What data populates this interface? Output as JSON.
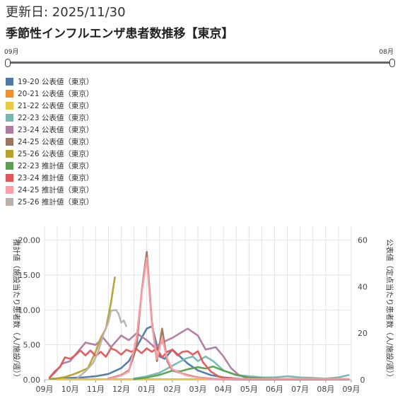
{
  "header": {
    "updated_label": "更新日: 2025/11/30",
    "title": "季節性インフルエンザ患者数推移【東京】"
  },
  "range": {
    "start": "09月",
    "end": "08月"
  },
  "chart_data": {
    "type": "line",
    "title": "季節性インフルエンザ患者数推移【東京】",
    "x_ticks": [
      "09月",
      "10月",
      "11月",
      "12月",
      "01月",
      "02月",
      "03月",
      "04月",
      "05月",
      "06月",
      "07月",
      "08月",
      "09月"
    ],
    "y_left": {
      "label": "推計値（施設当たり患者数（人/施設/週））",
      "ticks": [
        "0.00",
        "5.00",
        "10.00",
        "15.00",
        "20.00"
      ],
      "range": [
        0,
        22
      ]
    },
    "y_right": {
      "label": "公表値（定点当たり患者数（人/施設/週））",
      "ticks": [
        "0",
        "20",
        "40",
        "60"
      ],
      "range": [
        0,
        66
      ]
    },
    "grid": true,
    "legend_position": "top-left",
    "series": [
      {
        "name": "19-20 公表値（東京）",
        "color": "#4e79a7",
        "axis": "right",
        "points": [
          [
            0.2,
            0.4
          ],
          [
            0.6,
            0.5
          ],
          [
            1.0,
            0.8
          ],
          [
            1.5,
            1.0
          ],
          [
            2.0,
            1.5
          ],
          [
            2.5,
            2.5
          ],
          [
            3.0,
            5
          ],
          [
            3.3,
            8
          ],
          [
            3.5,
            12
          ],
          [
            3.8,
            18
          ],
          [
            4.0,
            22
          ],
          [
            4.2,
            23
          ],
          [
            4.3,
            19
          ],
          [
            4.5,
            10
          ],
          [
            4.7,
            9
          ],
          [
            5.0,
            13
          ],
          [
            5.3,
            10
          ],
          [
            5.6,
            7
          ],
          [
            6.0,
            4
          ],
          [
            6.5,
            2
          ],
          [
            7.0,
            1
          ],
          [
            7.5,
            0.5
          ],
          [
            8.0,
            0.2
          ],
          [
            9.0,
            0.1
          ],
          [
            10.0,
            0.1
          ],
          [
            11.0,
            0.1
          ],
          [
            11.9,
            0.2
          ]
        ]
      },
      {
        "name": "20-21 公表値（東京）",
        "color": "#f28e2b",
        "axis": "right",
        "points": [
          [
            0.5,
            0.2
          ],
          [
            2,
            0.2
          ],
          [
            4,
            0.2
          ],
          [
            6,
            0.2
          ],
          [
            8,
            0.2
          ],
          [
            10,
            0.2
          ],
          [
            11.9,
            0.2
          ]
        ]
      },
      {
        "name": "21-22 公表値（東京）",
        "color": "#edc948",
        "axis": "right",
        "points": [
          [
            0.5,
            0.1
          ],
          [
            2,
            0.1
          ],
          [
            4,
            0.1
          ],
          [
            6,
            0.1
          ],
          [
            8,
            0.1
          ],
          [
            10,
            0.1
          ],
          [
            11.9,
            0.1
          ]
        ]
      },
      {
        "name": "22-23 公表値（東京）",
        "color": "#76b7b2",
        "axis": "right",
        "points": [
          [
            3.5,
            0.5
          ],
          [
            4.0,
            1.5
          ],
          [
            4.5,
            3
          ],
          [
            5.0,
            6
          ],
          [
            5.5,
            9
          ],
          [
            5.8,
            10
          ],
          [
            6.0,
            8
          ],
          [
            6.3,
            10
          ],
          [
            6.6,
            8
          ],
          [
            7.0,
            4
          ],
          [
            7.5,
            2
          ],
          [
            8.0,
            1.5
          ],
          [
            8.5,
            1
          ],
          [
            9.0,
            1
          ],
          [
            9.5,
            1.5
          ],
          [
            10.0,
            1
          ],
          [
            10.5,
            0.8
          ],
          [
            11.0,
            0.5
          ],
          [
            11.5,
            1
          ],
          [
            11.9,
            2
          ]
        ]
      },
      {
        "name": "23-24 公表値（東京）",
        "color": "#b07aa1",
        "axis": "right",
        "points": [
          [
            0.2,
            1
          ],
          [
            0.4,
            3
          ],
          [
            0.7,
            7
          ],
          [
            1.0,
            8
          ],
          [
            1.3,
            12
          ],
          [
            1.6,
            16
          ],
          [
            2.0,
            15
          ],
          [
            2.3,
            18
          ],
          [
            2.6,
            14
          ],
          [
            3.0,
            19
          ],
          [
            3.3,
            17
          ],
          [
            3.6,
            20
          ],
          [
            4.0,
            17
          ],
          [
            4.3,
            14
          ],
          [
            4.6,
            16
          ],
          [
            5.0,
            18
          ],
          [
            5.3,
            20
          ],
          [
            5.6,
            22
          ],
          [
            6.0,
            19
          ],
          [
            6.3,
            13
          ],
          [
            6.7,
            14
          ],
          [
            7.0,
            10
          ],
          [
            7.3,
            5
          ],
          [
            7.6,
            2
          ],
          [
            8.0,
            0.5
          ],
          [
            8.5,
            0.2
          ],
          [
            9.0,
            0.1
          ],
          [
            10.0,
            0.1
          ],
          [
            11.9,
            0.1
          ]
        ]
      },
      {
        "name": "24-25 公表値（東京）",
        "color": "#9c755f",
        "axis": "right",
        "points": [
          [
            2.5,
            0.5
          ],
          [
            3.0,
            2
          ],
          [
            3.3,
            4
          ],
          [
            3.6,
            14
          ],
          [
            3.8,
            38
          ],
          [
            4.0,
            55
          ],
          [
            4.2,
            25
          ],
          [
            4.4,
            8
          ],
          [
            4.6,
            22
          ],
          [
            4.8,
            8
          ],
          [
            5.0,
            4
          ],
          [
            5.3,
            3
          ],
          [
            5.6,
            2
          ],
          [
            6.0,
            1
          ],
          [
            6.5,
            0.5
          ],
          [
            7.0,
            0.2
          ],
          [
            8,
            0.1
          ],
          [
            9,
            0.1
          ],
          [
            10,
            0.1
          ],
          [
            11.9,
            0.1
          ]
        ]
      },
      {
        "name": "25-26 公表値（東京）",
        "color": "#b5a12c",
        "axis": "right",
        "points": [
          [
            0.2,
            0.3
          ],
          [
            0.5,
            0.6
          ],
          [
            0.8,
            1.2
          ],
          [
            1.1,
            2.2
          ],
          [
            1.4,
            3.5
          ],
          [
            1.7,
            5
          ],
          [
            2.0,
            12
          ],
          [
            2.2,
            18
          ],
          [
            2.4,
            22
          ],
          [
            2.6,
            33
          ],
          [
            2.75,
            44
          ]
        ]
      },
      {
        "name": "22-23 推計値（東京）",
        "color": "#59a14f",
        "axis": "left",
        "points": [
          [
            3.5,
            0.1
          ],
          [
            4.0,
            0.3
          ],
          [
            4.5,
            0.7
          ],
          [
            5.0,
            1.3
          ],
          [
            5.3,
            1.2
          ],
          [
            5.6,
            1.5
          ],
          [
            6.0,
            1.8
          ],
          [
            6.3,
            1.6
          ],
          [
            6.6,
            1.9
          ],
          [
            7.0,
            1.3
          ],
          [
            7.5,
            0.7
          ],
          [
            8.0,
            0.3
          ],
          [
            8.5,
            0.2
          ],
          [
            9.0,
            0.1
          ],
          [
            10,
            0.1
          ],
          [
            11,
            0.1
          ],
          [
            11.9,
            0.1
          ]
        ]
      },
      {
        "name": "23-24 推計値（東京）",
        "color": "#e15759",
        "axis": "left",
        "points": [
          [
            0.2,
            0.3
          ],
          [
            0.4,
            1.2
          ],
          [
            0.6,
            1.8
          ],
          [
            0.8,
            3.2
          ],
          [
            1.0,
            3.0
          ],
          [
            1.2,
            3.5
          ],
          [
            1.4,
            4.2
          ],
          [
            1.6,
            3.5
          ],
          [
            1.8,
            4.2
          ],
          [
            2.0,
            3.4
          ],
          [
            2.2,
            4.0
          ],
          [
            2.4,
            3.3
          ],
          [
            2.6,
            4.5
          ],
          [
            2.8,
            4.2
          ],
          [
            3.0,
            3.6
          ],
          [
            3.2,
            4.3
          ],
          [
            3.4,
            4.0
          ],
          [
            3.6,
            4.4
          ],
          [
            3.8,
            3.8
          ],
          [
            4.0,
            4.5
          ],
          [
            4.2,
            4.0
          ],
          [
            4.4,
            4.5
          ],
          [
            4.6,
            3.2
          ],
          [
            4.8,
            4.0
          ],
          [
            5.0,
            4.3
          ],
          [
            5.2,
            3.5
          ],
          [
            5.4,
            4.0
          ],
          [
            5.6,
            4.1
          ],
          [
            5.8,
            3.6
          ],
          [
            6.0,
            4.1
          ],
          [
            6.2,
            2.5
          ],
          [
            6.5,
            1.2
          ],
          [
            6.8,
            0.5
          ],
          [
            7.0,
            0.3
          ],
          [
            7.5,
            0.1
          ],
          [
            8,
            0.1
          ],
          [
            9,
            0.1
          ],
          [
            10,
            0.1
          ],
          [
            11.9,
            0.1
          ]
        ]
      },
      {
        "name": "24-25 推計値（東京）",
        "color": "#ff9da7",
        "axis": "left",
        "points": [
          [
            2.5,
            0.1
          ],
          [
            3.0,
            0.6
          ],
          [
            3.3,
            1.2
          ],
          [
            3.6,
            6
          ],
          [
            3.8,
            12.5
          ],
          [
            4.0,
            17.5
          ],
          [
            4.2,
            8
          ],
          [
            4.4,
            3
          ],
          [
            4.6,
            6
          ],
          [
            4.8,
            3
          ],
          [
            5.0,
            1.5
          ],
          [
            5.3,
            1.0
          ],
          [
            5.6,
            0.6
          ],
          [
            6.0,
            0.3
          ],
          [
            6.5,
            0.1
          ],
          [
            7.5,
            0.1
          ],
          [
            9,
            0.1
          ],
          [
            11.9,
            0.1
          ]
        ]
      },
      {
        "name": "25-26 推計値（東京）",
        "color": "#bab0ac",
        "axis": "left",
        "points": [
          [
            1.3,
            0.3
          ],
          [
            1.6,
            1.2
          ],
          [
            1.9,
            2.4
          ],
          [
            2.1,
            4.0
          ],
          [
            2.3,
            6.5
          ],
          [
            2.5,
            8.3
          ],
          [
            2.6,
            9.9
          ],
          [
            2.8,
            10.0
          ],
          [
            2.9,
            9.4
          ],
          [
            3.0,
            8.2
          ],
          [
            3.1,
            8.5
          ],
          [
            3.2,
            7.7
          ]
        ]
      }
    ]
  }
}
